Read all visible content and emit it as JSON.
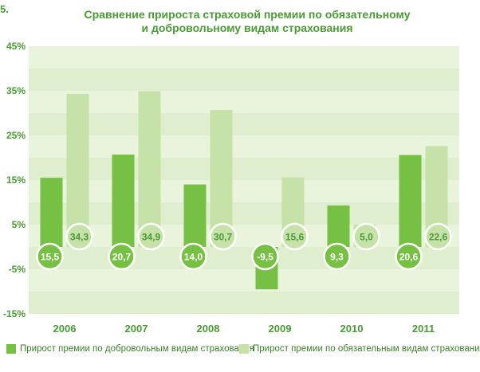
{
  "figure_number": "5.",
  "title_lines": [
    "Сравнение прироста страховой премии по обязательному",
    "и добровольному видам страхования"
  ],
  "colors": {
    "voluntary": "#76c043",
    "obligatory": "#c6e2a8",
    "band_light": "#eaf4dc",
    "band_dark": "#dfeece",
    "text": "#4a9a35"
  },
  "chart_data": {
    "type": "bar",
    "categories": [
      "2006",
      "2007",
      "2008",
      "2009",
      "2010",
      "2011"
    ],
    "series": [
      {
        "name": "Прирост премии по добровольным видам страхования",
        "values": [
          15.5,
          20.7,
          14.0,
          -9.5,
          9.3,
          20.6
        ],
        "labels": [
          "15,5",
          "20,7",
          "14,0",
          "-9,5",
          "9,3",
          "20,6"
        ]
      },
      {
        "name": "Прирост премии по обязательным видам страхования",
        "values": [
          34.3,
          34.9,
          30.7,
          15.6,
          5.0,
          22.6
        ],
        "labels": [
          "34,3",
          "34,9",
          "30,7",
          "15,6",
          "5,0",
          "22,6"
        ]
      }
    ],
    "ylim": [
      -15,
      45
    ],
    "yticks": [
      45,
      35,
      25,
      15,
      5,
      -5,
      -15
    ],
    "ytick_labels": [
      "45%",
      "35%",
      "25%",
      "15%",
      "5%",
      "-5%",
      "-15%"
    ],
    "grid": "alternating bands",
    "legend": "bottom"
  }
}
